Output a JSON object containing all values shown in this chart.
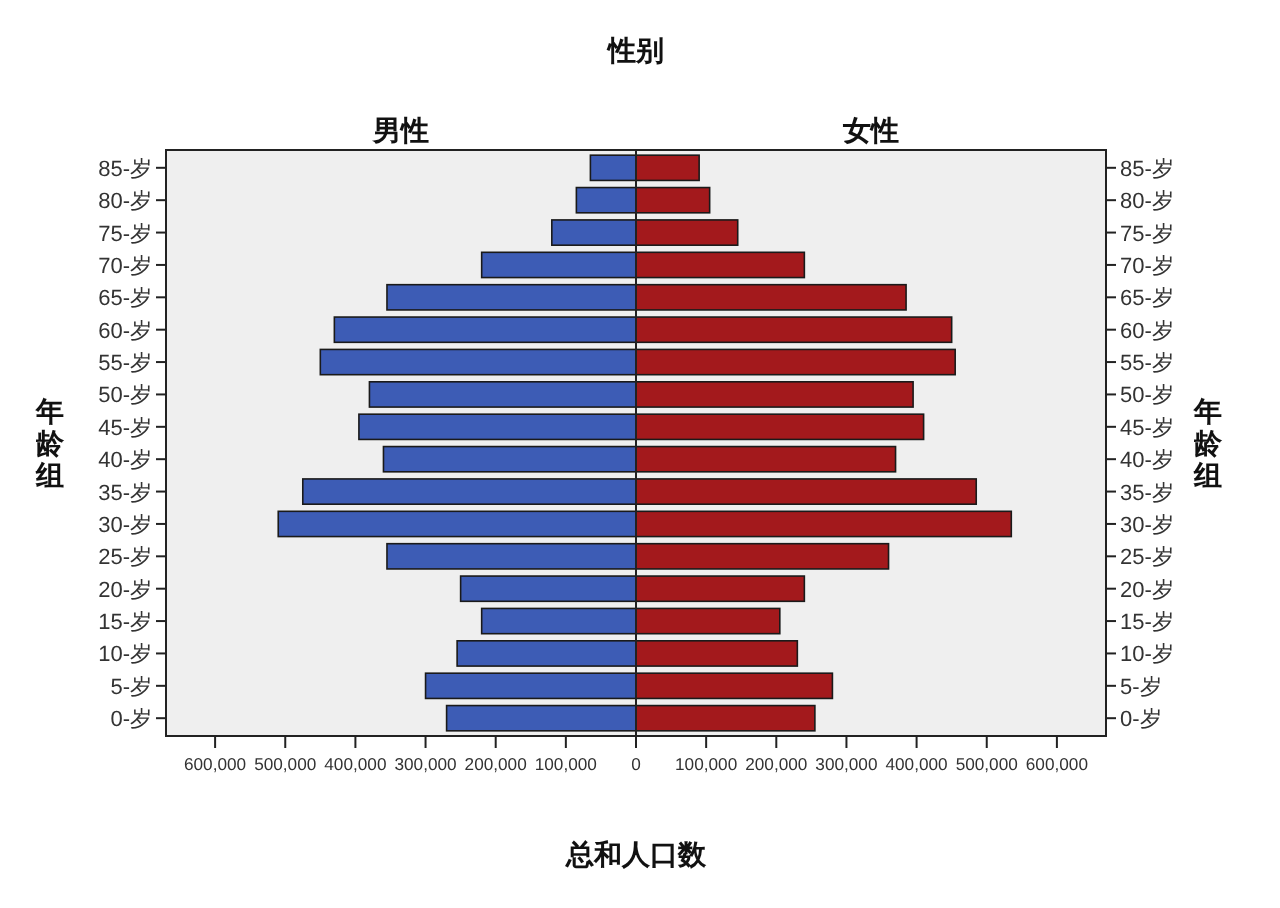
{
  "chart_data": [
    {
      "type": "bar",
      "orientation": "horizontal",
      "title": "男性",
      "xlabel": "总和人口数",
      "ylabel": "年龄组",
      "annotations": [
        "性别"
      ],
      "categories": [
        "85-岁",
        "80-岁",
        "75-岁",
        "70-岁",
        "65-岁",
        "60-岁",
        "55-岁",
        "50-岁",
        "45-岁",
        "40-岁",
        "35-岁",
        "30-岁",
        "25-岁",
        "20-岁",
        "15-岁",
        "10-岁",
        "5-岁",
        "0-岁"
      ],
      "series": [
        {
          "color": "#3d5cb5",
          "values": [
            65000,
            85000,
            120000,
            220000,
            355000,
            430000,
            450000,
            380000,
            395000,
            360000,
            475000,
            510000,
            355000,
            250000,
            220000,
            255000,
            300000,
            270000
          ]
        }
      ],
      "xlim": [
        670000,
        0
      ],
      "xticks": [
        {
          "value": 0,
          "label": "0"
        },
        {
          "value": 100000,
          "label": "100,000"
        },
        {
          "value": 200000,
          "label": "200,000"
        },
        {
          "value": 300000,
          "label": "300,000"
        },
        {
          "value": 400000,
          "label": "400,000"
        },
        {
          "value": 500000,
          "label": "500,000"
        },
        {
          "value": 600000,
          "label": "600,000"
        }
      ]
    },
    {
      "type": "bar",
      "orientation": "horizontal",
      "title": "女性",
      "ylabel": "年龄组",
      "categories": [
        "85-岁",
        "80-岁",
        "75-岁",
        "70-岁",
        "65-岁",
        "60-岁",
        "55-岁",
        "50-岁",
        "45-岁",
        "40-岁",
        "35-岁",
        "30-岁",
        "25-岁",
        "20-岁",
        "15-岁",
        "10-岁",
        "5-岁",
        "0-岁"
      ],
      "series": [
        {
          "color": "#a3191c",
          "values": [
            90000,
            105000,
            145000,
            240000,
            385000,
            450000,
            455000,
            395000,
            410000,
            370000,
            485000,
            535000,
            360000,
            240000,
            205000,
            230000,
            280000,
            255000
          ]
        }
      ],
      "xlim": [
        0,
        670000
      ],
      "xticks": [
        {
          "value": 0,
          "label": null
        },
        {
          "value": 100000,
          "label": "100,000"
        },
        {
          "value": 200000,
          "label": "200,000"
        },
        {
          "value": 300000,
          "label": "300,000"
        },
        {
          "value": 400000,
          "label": "400,000"
        },
        {
          "value": 500000,
          "label": "500,000"
        },
        {
          "value": 600000,
          "label": "600,000"
        }
      ]
    }
  ]
}
